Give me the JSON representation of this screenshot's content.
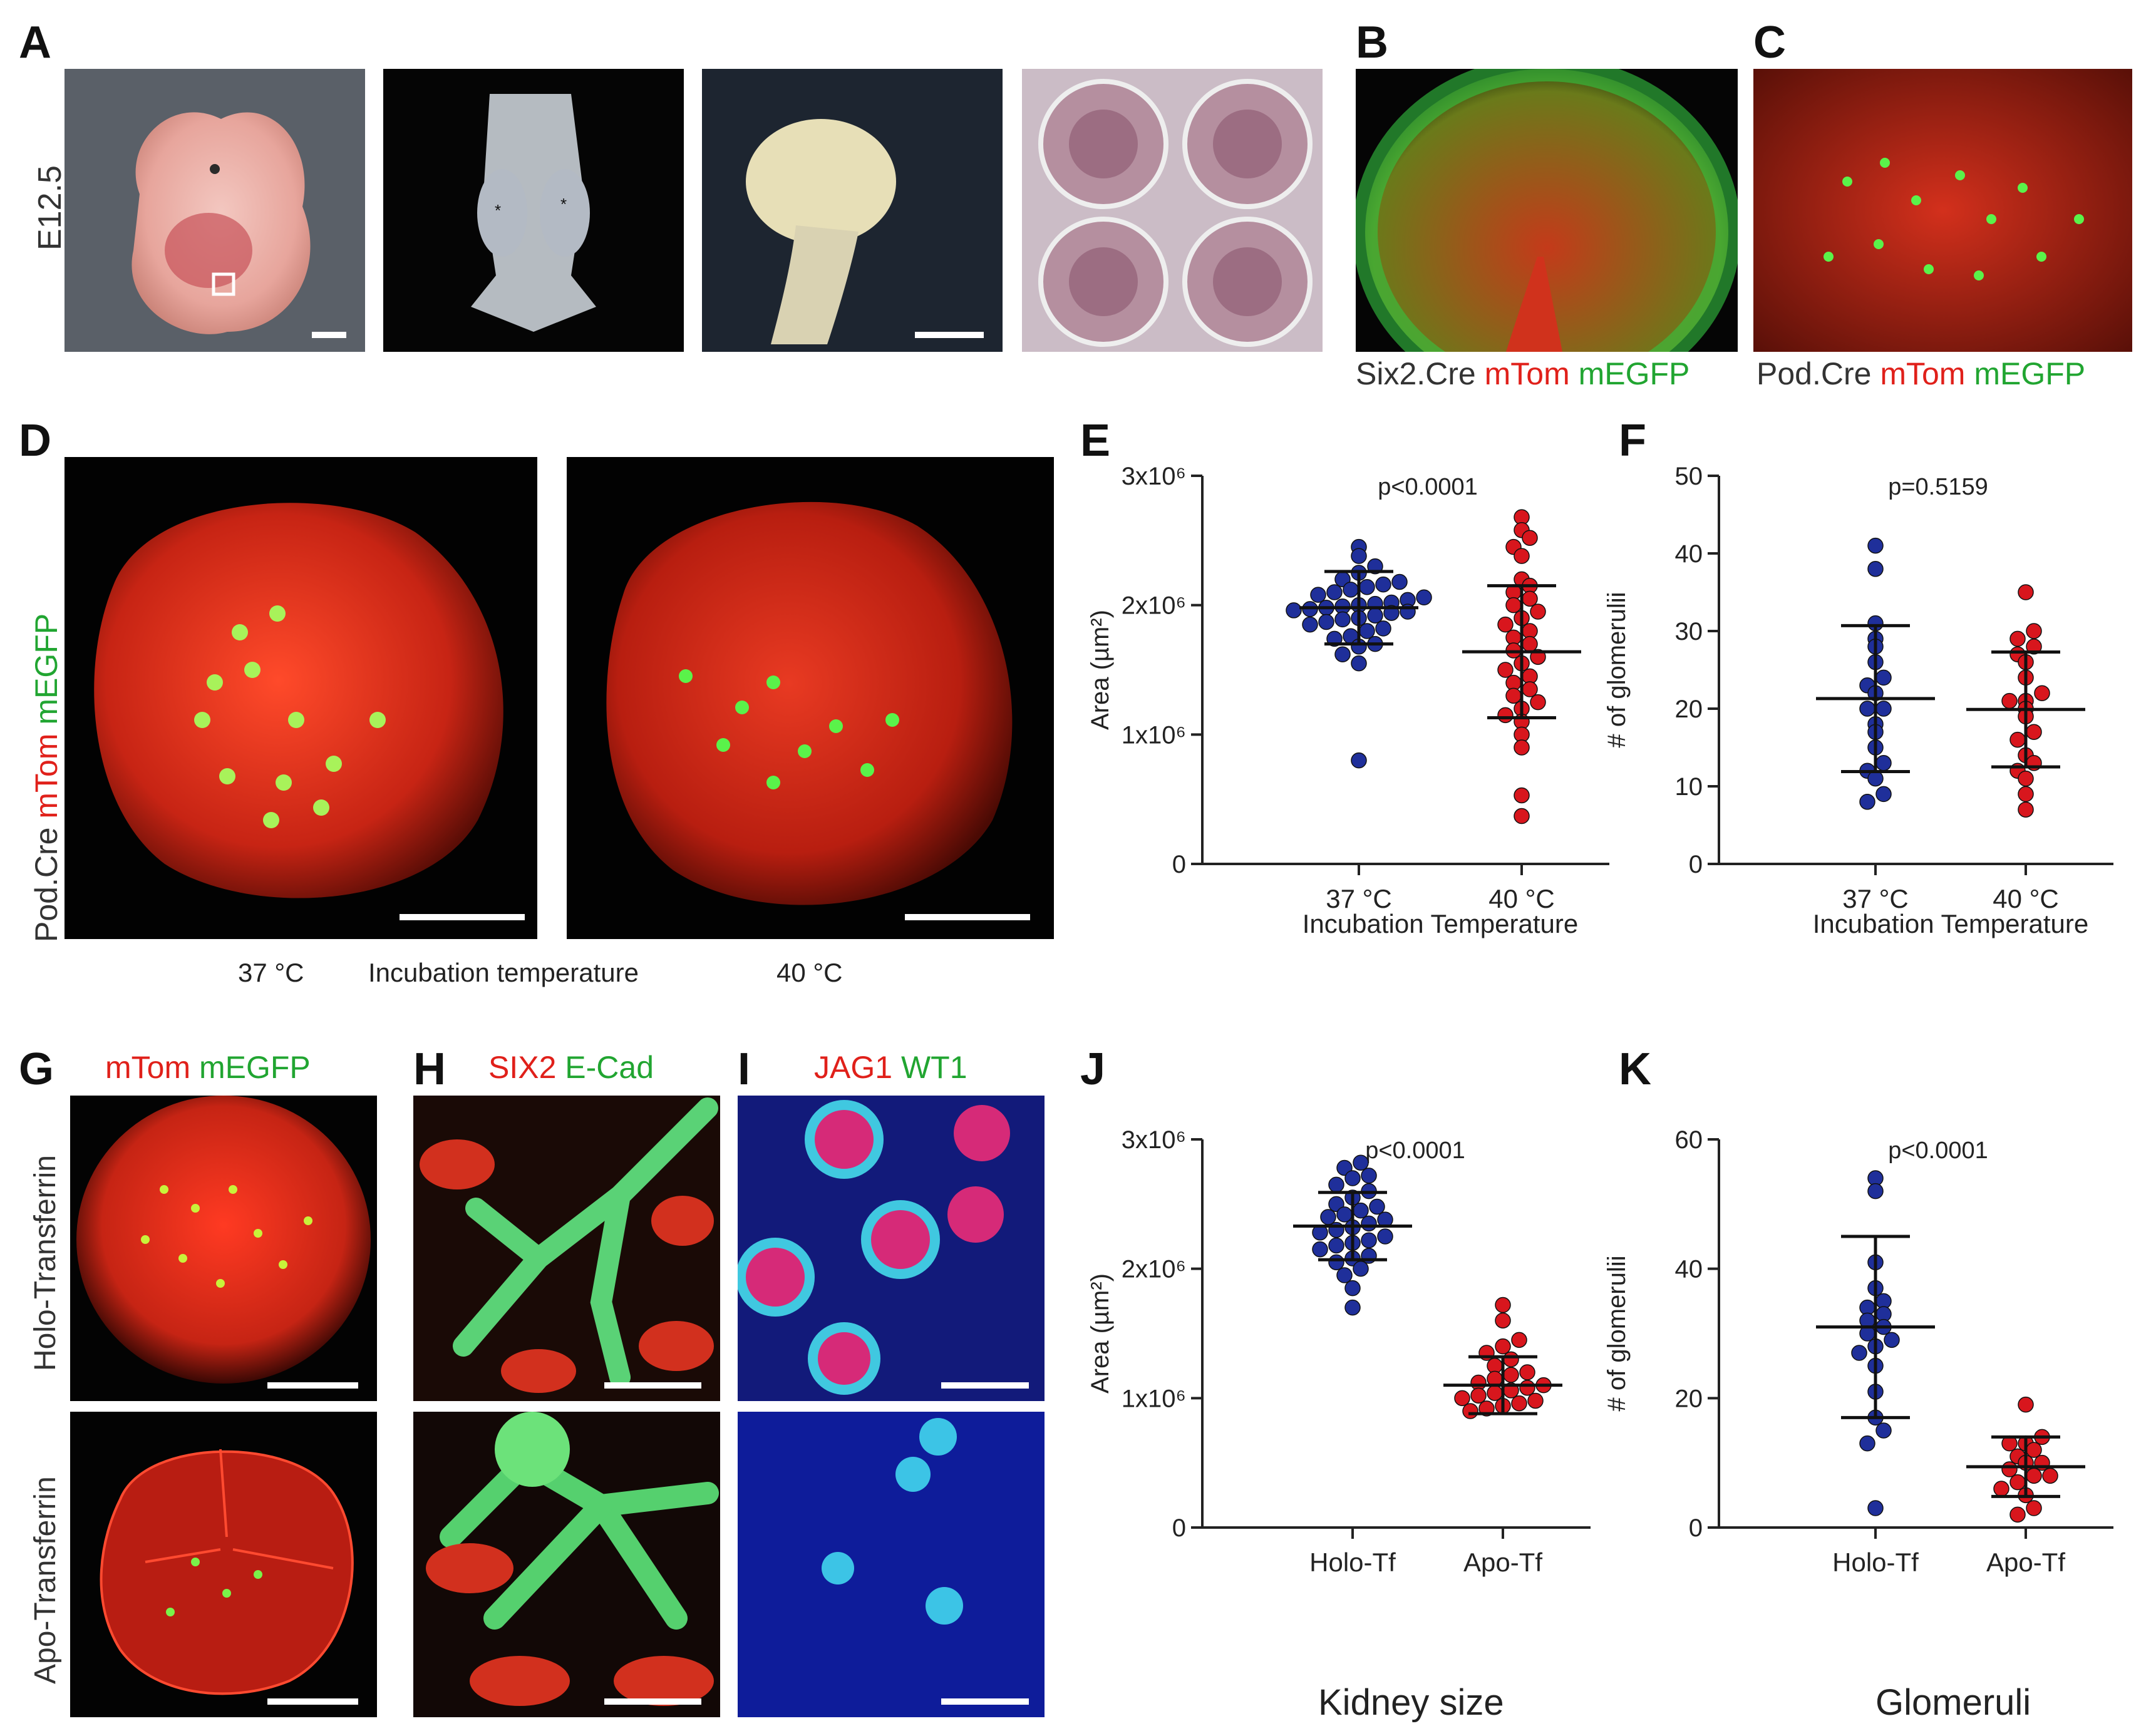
{
  "panel_letters": {
    "A": "A",
    "B": "B",
    "C": "C",
    "D": "D",
    "E": "E",
    "F": "F",
    "G": "G",
    "H": "H",
    "I": "I",
    "J": "J",
    "K": "K"
  },
  "panel_a": {
    "stage_label": "E12.5"
  },
  "panel_b": {
    "caption_parts": [
      "Six2.Cre ",
      "mTom ",
      "mEGFP"
    ]
  },
  "panel_c": {
    "caption_parts": [
      "Pod.Cre ",
      "mTom ",
      "mEGFP"
    ]
  },
  "panel_d": {
    "side_label_parts": [
      "Pod.Cre ",
      "mTom ",
      "mEGFP"
    ],
    "temp_left": "37 °C",
    "temp_title": "Incubation temperature",
    "temp_right": "40 °C"
  },
  "panel_g": {
    "caption_parts": [
      "mTom ",
      "mEGFP"
    ],
    "row_top": "Holo-Transferrin",
    "row_bottom": "Apo-Transferrin"
  },
  "panel_h": {
    "caption_parts": [
      "SIX2 ",
      "E-Cad"
    ]
  },
  "panel_i": {
    "caption_parts": [
      "JAG1 ",
      "WT1"
    ]
  },
  "colors": {
    "blue_dot": "#1f2f9a",
    "red_dot": "#d8161d",
    "mtom": "#e0201a",
    "megfp": "#21a531"
  },
  "bottom_titles": {
    "kidney": "Kidney size",
    "glomeruli": "Glomeruli"
  },
  "chart_data": [
    {
      "id": "E",
      "type": "scatter",
      "ylabel": "Area (µm²)",
      "xlabel": "Incubation Temperature",
      "categories": [
        "37 °C",
        "40 °C"
      ],
      "yticks": [
        0,
        1000000,
        2000000,
        3000000
      ],
      "ytick_labels": [
        "0",
        "1x10⁶",
        "2x10⁶",
        "3x10⁶"
      ],
      "ylim": [
        0,
        3000000
      ],
      "annotation": "p<0.0001",
      "series": [
        {
          "category": "37 °C",
          "color": "blue",
          "mean": 1980000,
          "sd": 280000,
          "values": [
            800000,
            1550000,
            1620000,
            1680000,
            1700000,
            1740000,
            1760000,
            1800000,
            1820000,
            1850000,
            1870000,
            1890000,
            1900000,
            1920000,
            1940000,
            1950000,
            1960000,
            1970000,
            1980000,
            1990000,
            2000000,
            2010000,
            2020000,
            2040000,
            2060000,
            2080000,
            2100000,
            2120000,
            2140000,
            2160000,
            2180000,
            2200000,
            2250000,
            2300000,
            2380000,
            2450000
          ]
        },
        {
          "category": "40 °C",
          "color": "red",
          "mean": 1640000,
          "sd": 510000,
          "values": [
            370000,
            530000,
            900000,
            1000000,
            1100000,
            1150000,
            1200000,
            1250000,
            1300000,
            1350000,
            1400000,
            1450000,
            1500000,
            1550000,
            1600000,
            1650000,
            1700000,
            1750000,
            1800000,
            1850000,
            1900000,
            1950000,
            2000000,
            2050000,
            2100000,
            2150000,
            2200000,
            2380000,
            2450000,
            2520000,
            2580000,
            2680000
          ]
        }
      ]
    },
    {
      "id": "F",
      "type": "scatter",
      "ylabel": "# of glomerulii",
      "xlabel": "Incubation Temperature",
      "categories": [
        "37 °C",
        "40 °C"
      ],
      "yticks": [
        0,
        10,
        20,
        30,
        40,
        50
      ],
      "ytick_labels": [
        "0",
        "10",
        "20",
        "30",
        "40",
        "50"
      ],
      "ylim": [
        0,
        50
      ],
      "annotation": "p=0.5159",
      "series": [
        {
          "category": "37 °C",
          "color": "blue",
          "mean": 21.3,
          "sd": 9.4,
          "values": [
            8,
            9,
            11,
            12,
            13,
            15,
            17,
            18,
            20,
            20,
            22,
            23,
            24,
            26,
            28,
            29,
            31,
            38,
            41
          ]
        },
        {
          "category": "40 °C",
          "color": "red",
          "mean": 19.9,
          "sd": 7.4,
          "values": [
            7,
            9,
            11,
            12,
            13,
            14,
            16,
            17,
            19,
            20,
            21,
            21,
            22,
            24,
            26,
            27,
            28,
            29,
            30,
            35
          ]
        }
      ]
    },
    {
      "id": "J",
      "type": "scatter",
      "ylabel": "Area (µm²)",
      "xlabel": "",
      "categories": [
        "Holo-Tf",
        "Apo-Tf"
      ],
      "yticks": [
        0,
        1000000,
        2000000,
        3000000
      ],
      "ytick_labels": [
        "0",
        "1x10⁶",
        "2x10⁶",
        "3x10⁶"
      ],
      "ylim": [
        0,
        3000000
      ],
      "annotation": "p<0.0001",
      "series": [
        {
          "category": "Holo-Tf",
          "color": "blue",
          "mean": 2330000,
          "sd": 260000,
          "values": [
            1700000,
            1850000,
            1950000,
            2000000,
            2050000,
            2080000,
            2100000,
            2150000,
            2180000,
            2200000,
            2220000,
            2250000,
            2280000,
            2300000,
            2320000,
            2350000,
            2380000,
            2400000,
            2420000,
            2450000,
            2480000,
            2500000,
            2550000,
            2600000,
            2650000,
            2700000,
            2720000,
            2780000,
            2820000
          ]
        },
        {
          "category": "Apo-Tf",
          "color": "red",
          "mean": 1100000,
          "sd": 220000,
          "values": [
            900000,
            920000,
            940000,
            960000,
            980000,
            1000000,
            1020000,
            1040000,
            1060000,
            1080000,
            1100000,
            1120000,
            1150000,
            1180000,
            1200000,
            1250000,
            1300000,
            1350000,
            1400000,
            1450000,
            1600000,
            1720000
          ]
        }
      ]
    },
    {
      "id": "K",
      "type": "scatter",
      "ylabel": "# of glomerulii",
      "xlabel": "",
      "categories": [
        "Holo-Tf",
        "Apo-Tf"
      ],
      "yticks": [
        0,
        20,
        40,
        60
      ],
      "ytick_labels": [
        "0",
        "20",
        "40",
        "60"
      ],
      "ylim": [
        0,
        60
      ],
      "annotation": "p<0.0001",
      "series": [
        {
          "category": "Holo-Tf",
          "color": "blue",
          "mean": 31,
          "sd": 14,
          "values": [
            3,
            13,
            15,
            17,
            21,
            25,
            27,
            28,
            29,
            30,
            31,
            32,
            33,
            34,
            35,
            37,
            41,
            52,
            54
          ]
        },
        {
          "category": "Apo-Tf",
          "color": "red",
          "mean": 9.4,
          "sd": 4.6,
          "values": [
            2,
            3,
            5,
            6,
            7,
            8,
            8,
            9,
            10,
            10,
            11,
            12,
            13,
            13,
            14,
            19
          ]
        }
      ]
    }
  ]
}
